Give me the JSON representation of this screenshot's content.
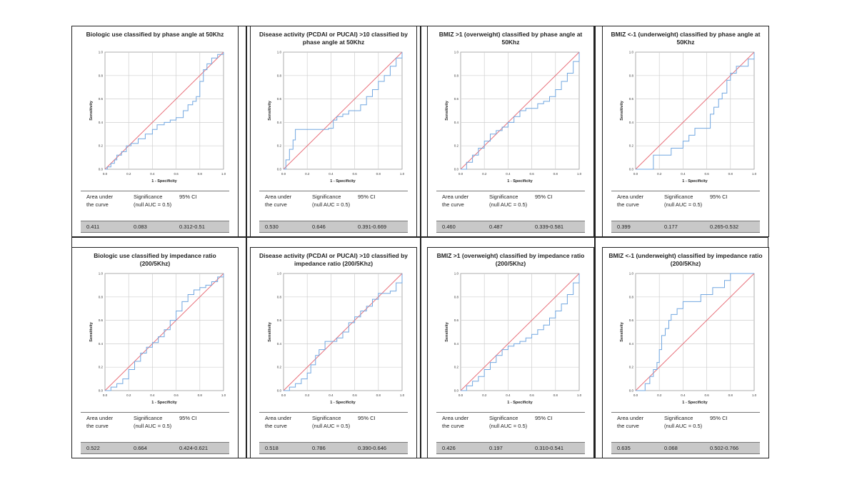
{
  "table_header": {
    "col_auc": "Area under the curve",
    "col_sig": "Significance (null AUC = 0.5)",
    "col_ci": "95% CI"
  },
  "axis_text": {
    "xlabel": "1 - Specificity",
    "ylabel": "Sensitivity"
  },
  "colors": {
    "roc": "#72a7e0",
    "reference": "#e8707a",
    "grid": "#cfcfcf",
    "table_row": "#c8c8c8"
  },
  "panels": [
    {
      "title": "Biologic use classified by phase angle at 50Khz",
      "auc": "0.411",
      "significance": "0.083",
      "ci": "0.312-0.51"
    },
    {
      "title": "Disease activity (PCDAI or PUCAI) >10 classified by phase angle at 50Khz",
      "auc": "0.530",
      "significance": "0.646",
      "ci": "0.391-0.669"
    },
    {
      "title": "BMIZ >1 (overweight) classified by phase angle at 50Khz",
      "auc": "0.460",
      "significance": "0.487",
      "ci": "0.339-0.581"
    },
    {
      "title": "BMIZ <-1 (underweight) classified by phase angle at 50Khz",
      "auc": "0.399",
      "significance": "0.177",
      "ci": "0.265-0.532"
    },
    {
      "title": "Biologic use classified by impedance ratio (200/5Khz)",
      "auc": "0.522",
      "significance": "0.664",
      "ci": "0.424-0.621"
    },
    {
      "title": "Disease activity (PCDAI or PUCAI) >10 classified by impedance ratio (200/5Khz)",
      "auc": "0.518",
      "significance": "0.786",
      "ci": "0.390-0.646"
    },
    {
      "title": "BMIZ >1 (overweight) classified by impedance ratio (200/5Khz)",
      "auc": "0.426",
      "significance": "0.197",
      "ci": "0.310-0.541"
    },
    {
      "title": "BMIZ <-1 (underweight) classified by impedance ratio (200/5Khz)",
      "auc": "0.635",
      "significance": "0.068",
      "ci": "0.502-0.766"
    }
  ],
  "chart_data": [
    {
      "type": "line",
      "title": "Biologic use classified by phase angle at 50Khz",
      "xlabel": "1 - Specificity",
      "ylabel": "Sensitivity",
      "xlim": [
        0,
        1
      ],
      "ylim": [
        0,
        1
      ],
      "grid": true,
      "ticks": [
        "0.0",
        "0.2",
        "0.4",
        "0.6",
        "0.8",
        "1.0"
      ],
      "series": [
        {
          "x": [
            0,
            0.02,
            0.05,
            0.08,
            0.1,
            0.14,
            0.18,
            0.22,
            0.28,
            0.34,
            0.4,
            0.44,
            0.5,
            0.55,
            0.6,
            0.66,
            0.7,
            0.74,
            0.77,
            0.8,
            0.83,
            0.86,
            0.9,
            0.95,
            1.0
          ],
          "y": [
            0,
            0.02,
            0.05,
            0.08,
            0.12,
            0.15,
            0.2,
            0.22,
            0.26,
            0.3,
            0.34,
            0.38,
            0.4,
            0.42,
            0.44,
            0.5,
            0.55,
            0.58,
            0.62,
            0.75,
            0.85,
            0.9,
            0.95,
            0.98,
            1.0
          ]
        },
        {
          "x": [
            0,
            1
          ],
          "y": [
            0,
            1
          ]
        }
      ]
    },
    {
      "type": "line",
      "title": "Disease activity (PCDAI or PUCAI) >10 classified by phase angle at 50Khz",
      "xlabel": "1 - Specificity",
      "ylabel": "Sensitivity",
      "xlim": [
        0,
        1
      ],
      "ylim": [
        0,
        1
      ],
      "grid": true,
      "ticks": [
        "0.0",
        "0.2",
        "0.4",
        "0.6",
        "0.8",
        "1.0"
      ],
      "series": [
        {
          "x": [
            0,
            0.02,
            0.05,
            0.08,
            0.1,
            0.15,
            0.2,
            0.3,
            0.38,
            0.42,
            0.45,
            0.5,
            0.55,
            0.6,
            0.65,
            0.7,
            0.75,
            0.8,
            0.85,
            0.9,
            0.95,
            1.0
          ],
          "y": [
            0,
            0.08,
            0.17,
            0.25,
            0.34,
            0.34,
            0.34,
            0.34,
            0.35,
            0.42,
            0.45,
            0.47,
            0.5,
            0.5,
            0.55,
            0.62,
            0.68,
            0.75,
            0.8,
            0.88,
            0.95,
            1.0
          ]
        },
        {
          "x": [
            0,
            1
          ],
          "y": [
            0,
            1
          ]
        }
      ]
    },
    {
      "type": "line",
      "title": "BMIZ >1 (overweight) classified by phase angle at 50Khz",
      "xlabel": "1 - Specificity",
      "ylabel": "Sensitivity",
      "xlim": [
        0,
        1
      ],
      "ylim": [
        0,
        1
      ],
      "grid": true,
      "ticks": [
        "0.0",
        "0.2",
        "0.4",
        "0.6",
        "0.8",
        "1.0"
      ],
      "series": [
        {
          "x": [
            0,
            0.05,
            0.1,
            0.15,
            0.2,
            0.25,
            0.3,
            0.35,
            0.4,
            0.45,
            0.5,
            0.55,
            0.6,
            0.65,
            0.7,
            0.75,
            0.8,
            0.85,
            0.9,
            0.95,
            1.0
          ],
          "y": [
            0,
            0.06,
            0.12,
            0.18,
            0.24,
            0.3,
            0.33,
            0.36,
            0.4,
            0.45,
            0.5,
            0.52,
            0.52,
            0.56,
            0.58,
            0.62,
            0.68,
            0.75,
            0.82,
            0.92,
            1.0
          ]
        },
        {
          "x": [
            0,
            1
          ],
          "y": [
            0,
            1
          ]
        }
      ]
    },
    {
      "type": "line",
      "title": "BMIZ <-1 (underweight) classified by phase angle at 50Khz",
      "xlabel": "1 - Specificity",
      "ylabel": "Sensitivity",
      "xlim": [
        0,
        1
      ],
      "ylim": [
        0,
        1
      ],
      "grid": true,
      "ticks": [
        "0.0",
        "0.2",
        "0.4",
        "0.6",
        "0.8",
        "1.0"
      ],
      "series": [
        {
          "x": [
            0,
            0.13,
            0.15,
            0.2,
            0.25,
            0.3,
            0.35,
            0.4,
            0.45,
            0.5,
            0.55,
            0.6,
            0.63,
            0.66,
            0.7,
            0.73,
            0.77,
            0.8,
            0.85,
            0.9,
            0.95,
            1.0
          ],
          "y": [
            0,
            0.0,
            0.12,
            0.12,
            0.12,
            0.18,
            0.18,
            0.24,
            0.29,
            0.35,
            0.35,
            0.35,
            0.47,
            0.53,
            0.6,
            0.65,
            0.76,
            0.82,
            0.88,
            0.88,
            0.94,
            1.0
          ]
        },
        {
          "x": [
            0,
            1
          ],
          "y": [
            0,
            1
          ]
        }
      ]
    },
    {
      "type": "line",
      "title": "Biologic use classified by impedance ratio (200/5Khz)",
      "xlabel": "1 - Specificity",
      "ylabel": "Sensitivity",
      "xlim": [
        0,
        1
      ],
      "ylim": [
        0,
        1
      ],
      "grid": true,
      "ticks": [
        "0.0",
        "0.2",
        "0.4",
        "0.6",
        "0.8",
        "1.0"
      ],
      "series": [
        {
          "x": [
            0,
            0.05,
            0.1,
            0.15,
            0.2,
            0.25,
            0.3,
            0.35,
            0.4,
            0.45,
            0.5,
            0.55,
            0.6,
            0.65,
            0.7,
            0.75,
            0.8,
            0.85,
            0.9,
            0.95,
            1.0
          ],
          "y": [
            0,
            0.03,
            0.06,
            0.1,
            0.18,
            0.25,
            0.32,
            0.37,
            0.41,
            0.46,
            0.52,
            0.6,
            0.68,
            0.76,
            0.82,
            0.86,
            0.88,
            0.9,
            0.93,
            0.97,
            1.0
          ]
        },
        {
          "x": [
            0,
            1
          ],
          "y": [
            0,
            1
          ]
        }
      ]
    },
    {
      "type": "line",
      "title": "Disease activity (PCDAI or PUCAI) >10 classified by impedance ratio (200/5Khz)",
      "xlabel": "1 - Specificity",
      "ylabel": "Sensitivity",
      "xlim": [
        0,
        1
      ],
      "ylim": [
        0,
        1
      ],
      "grid": true,
      "ticks": [
        "0.0",
        "0.2",
        "0.4",
        "0.6",
        "0.8",
        "1.0"
      ],
      "series": [
        {
          "x": [
            0,
            0.05,
            0.1,
            0.15,
            0.2,
            0.23,
            0.27,
            0.3,
            0.35,
            0.4,
            0.45,
            0.5,
            0.55,
            0.6,
            0.65,
            0.7,
            0.75,
            0.8,
            0.85,
            0.9,
            0.95,
            1.0
          ],
          "y": [
            0,
            0.03,
            0.06,
            0.1,
            0.15,
            0.22,
            0.3,
            0.35,
            0.42,
            0.42,
            0.45,
            0.5,
            0.58,
            0.63,
            0.68,
            0.72,
            0.78,
            0.83,
            0.83,
            0.85,
            0.92,
            1.0
          ]
        },
        {
          "x": [
            0,
            1
          ],
          "y": [
            0,
            1
          ]
        }
      ]
    },
    {
      "type": "line",
      "title": "BMIZ >1 (overweight) classified by impedance ratio (200/5Khz)",
      "xlabel": "1 - Specificity",
      "ylabel": "Sensitivity",
      "xlim": [
        0,
        1
      ],
      "ylim": [
        0,
        1
      ],
      "grid": true,
      "ticks": [
        "0.0",
        "0.2",
        "0.4",
        "0.6",
        "0.8",
        "1.0"
      ],
      "series": [
        {
          "x": [
            0,
            0.05,
            0.1,
            0.15,
            0.2,
            0.25,
            0.3,
            0.35,
            0.4,
            0.45,
            0.5,
            0.55,
            0.6,
            0.65,
            0.7,
            0.75,
            0.8,
            0.85,
            0.9,
            0.95,
            1.0
          ],
          "y": [
            0,
            0.04,
            0.08,
            0.12,
            0.18,
            0.24,
            0.3,
            0.35,
            0.38,
            0.4,
            0.42,
            0.45,
            0.48,
            0.52,
            0.56,
            0.62,
            0.68,
            0.74,
            0.82,
            0.92,
            1.0
          ]
        },
        {
          "x": [
            0,
            1
          ],
          "y": [
            0,
            1
          ]
        }
      ]
    },
    {
      "type": "line",
      "title": "BMIZ <-1 (underweight) classified by impedance ratio (200/5Khz)",
      "xlabel": "1 - Specificity",
      "ylabel": "Sensitivity",
      "xlim": [
        0,
        1
      ],
      "ylim": [
        0,
        1
      ],
      "grid": true,
      "ticks": [
        "0.0",
        "0.2",
        "0.4",
        "0.6",
        "0.8",
        "1.0"
      ],
      "series": [
        {
          "x": [
            0,
            0.08,
            0.12,
            0.15,
            0.18,
            0.2,
            0.22,
            0.25,
            0.28,
            0.3,
            0.35,
            0.4,
            0.45,
            0.5,
            0.55,
            0.6,
            0.65,
            0.7,
            0.75,
            0.8,
            0.85,
            0.9,
            1.0
          ],
          "y": [
            0,
            0.06,
            0.12,
            0.18,
            0.24,
            0.35,
            0.47,
            0.53,
            0.6,
            0.65,
            0.7,
            0.76,
            0.76,
            0.76,
            0.82,
            0.82,
            0.88,
            0.88,
            0.94,
            1.0,
            1.0,
            1.0,
            1.0
          ]
        },
        {
          "x": [
            0,
            1
          ],
          "y": [
            0,
            1
          ]
        }
      ]
    }
  ]
}
